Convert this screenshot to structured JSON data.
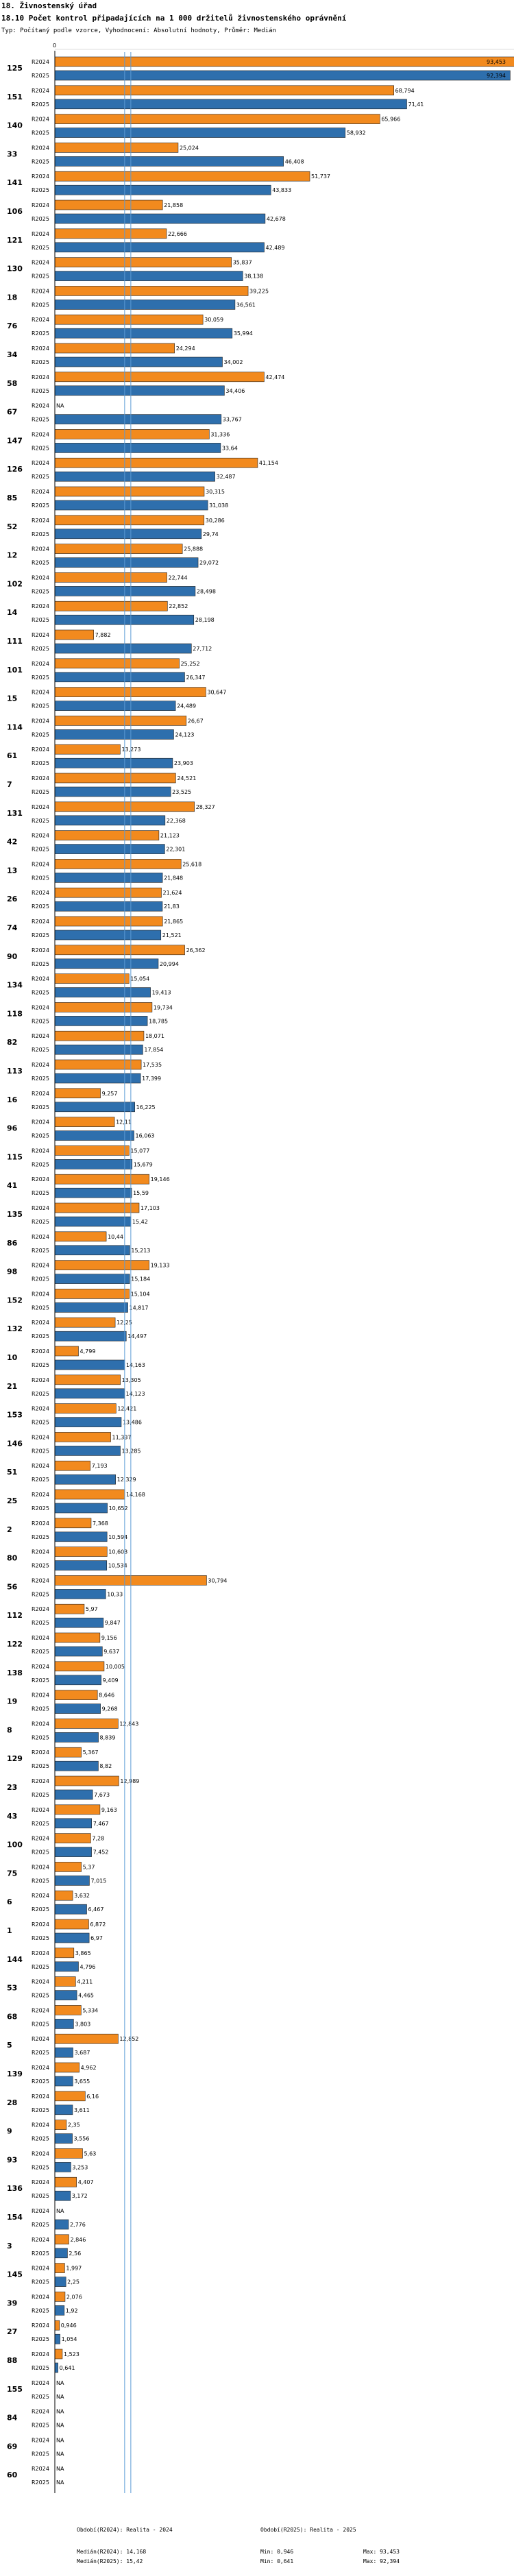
{
  "header": {
    "title": "18. Živnostenský úřad",
    "subtitle": "18.10 Počet kontrol připadajících na 1 000 držitelů živnostenského oprávnění",
    "note": "Typ: Počítaný podle vzorce, Vyhodnocení: Absolutní hodnoty, Průměr: Medián"
  },
  "footer": {
    "period_2024": "Období(R2024): Realita - 2024",
    "period_2025": "Období(R2025): Realita - 2025",
    "median_2024": "Medián(R2024): 14,168",
    "median_2025": "Medián(R2025): 15,42",
    "min_2024": "Min: 0,946",
    "min_2025": "Min: 0,641",
    "max_2024": "Max: 93,453",
    "max_2025": "Max: 92,394"
  },
  "colors": {
    "r2024": "#f28a1e",
    "r2025": "#2e6fad",
    "median": "#5b9bd5"
  },
  "chart_data": {
    "type": "bar",
    "orientation": "horizontal",
    "title": "18.10 Počet kontrol připadajících na 1 000 držitelů živnostenského oprávnění",
    "axis_tick": "0",
    "xlim": [
      0,
      93.453
    ],
    "median_2024": 14.168,
    "median_2025": 15.42,
    "series_names": [
      "R2024",
      "R2025"
    ],
    "categories": [
      {
        "id": "125",
        "v24": 93.453,
        "v25": 92.394,
        "t24": "93,453",
        "t25": "92,394"
      },
      {
        "id": "151",
        "v24": 68.794,
        "v25": 71.41,
        "t24": "68,794",
        "t25": "71,41"
      },
      {
        "id": "140",
        "v24": 65.966,
        "v25": 58.932,
        "t24": "65,966",
        "t25": "58,932"
      },
      {
        "id": "33",
        "v24": 25.024,
        "v25": 46.408,
        "t24": "25,024",
        "t25": "46,408"
      },
      {
        "id": "141",
        "v24": 51.737,
        "v25": 43.833,
        "t24": "51,737",
        "t25": "43,833"
      },
      {
        "id": "106",
        "v24": 21.858,
        "v25": 42.678,
        "t24": "21,858",
        "t25": "42,678"
      },
      {
        "id": "121",
        "v24": 22.666,
        "v25": 42.489,
        "t24": "22,666",
        "t25": "42,489"
      },
      {
        "id": "130",
        "v24": 35.837,
        "v25": 38.138,
        "t24": "35,837",
        "t25": "38,138"
      },
      {
        "id": "18",
        "v24": 39.225,
        "v25": 36.561,
        "t24": "39,225",
        "t25": "36,561"
      },
      {
        "id": "76",
        "v24": 30.059,
        "v25": 35.994,
        "t24": "30,059",
        "t25": "35,994"
      },
      {
        "id": "34",
        "v24": 24.294,
        "v25": 34.002,
        "t24": "24,294",
        "t25": "34,002"
      },
      {
        "id": "58",
        "v24": 42.474,
        "v25": 34.406,
        "t24": "42,474",
        "t25": "34,406"
      },
      {
        "id": "67",
        "v24": null,
        "v25": 33.767,
        "t24": "NA",
        "t25": "33,767"
      },
      {
        "id": "147",
        "v24": 31.336,
        "v25": 33.64,
        "t24": "31,336",
        "t25": "33,64"
      },
      {
        "id": "126",
        "v24": 41.154,
        "v25": 32.487,
        "t24": "41,154",
        "t25": "32,487"
      },
      {
        "id": "85",
        "v24": 30.315,
        "v25": 31.038,
        "t24": "30,315",
        "t25": "31,038"
      },
      {
        "id": "52",
        "v24": 30.286,
        "v25": 29.74,
        "t24": "30,286",
        "t25": "29,74"
      },
      {
        "id": "12",
        "v24": 25.888,
        "v25": 29.072,
        "t24": "25,888",
        "t25": "29,072"
      },
      {
        "id": "102",
        "v24": 22.744,
        "v25": 28.498,
        "t24": "22,744",
        "t25": "28,498"
      },
      {
        "id": "14",
        "v24": 22.852,
        "v25": 28.198,
        "t24": "22,852",
        "t25": "28,198"
      },
      {
        "id": "111",
        "v24": 7.882,
        "v25": 27.712,
        "t24": "7,882",
        "t25": "27,712"
      },
      {
        "id": "101",
        "v24": 25.252,
        "v25": 26.347,
        "t24": "25,252",
        "t25": "26,347"
      },
      {
        "id": "15",
        "v24": 30.647,
        "v25": 24.489,
        "t24": "30,647",
        "t25": "24,489"
      },
      {
        "id": "114",
        "v24": 26.67,
        "v25": 24.123,
        "t24": "26,67",
        "t25": "24,123"
      },
      {
        "id": "61",
        "v24": 13.273,
        "v25": 23.903,
        "t24": "13,273",
        "t25": "23,903"
      },
      {
        "id": "7",
        "v24": 24.521,
        "v25": 23.525,
        "t24": "24,521",
        "t25": "23,525"
      },
      {
        "id": "131",
        "v24": 28.327,
        "v25": 22.368,
        "t24": "28,327",
        "t25": "22,368"
      },
      {
        "id": "42",
        "v24": 21.123,
        "v25": 22.301,
        "t24": "21,123",
        "t25": "22,301"
      },
      {
        "id": "13",
        "v24": 25.618,
        "v25": 21.848,
        "t24": "25,618",
        "t25": "21,848"
      },
      {
        "id": "26",
        "v24": 21.624,
        "v25": 21.83,
        "t24": "21,624",
        "t25": "21,83"
      },
      {
        "id": "74",
        "v24": 21.865,
        "v25": 21.521,
        "t24": "21,865",
        "t25": "21,521"
      },
      {
        "id": "90",
        "v24": 26.362,
        "v25": 20.994,
        "t24": "26,362",
        "t25": "20,994"
      },
      {
        "id": "134",
        "v24": 15.054,
        "v25": 19.413,
        "t24": "15,054",
        "t25": "19,413"
      },
      {
        "id": "118",
        "v24": 19.734,
        "v25": 18.785,
        "t24": "19,734",
        "t25": "18,785"
      },
      {
        "id": "82",
        "v24": 18.071,
        "v25": 17.854,
        "t24": "18,071",
        "t25": "17,854"
      },
      {
        "id": "113",
        "v24": 17.535,
        "v25": 17.399,
        "t24": "17,535",
        "t25": "17,399"
      },
      {
        "id": "16",
        "v24": 9.257,
        "v25": 16.225,
        "t24": "9,257",
        "t25": "16,225"
      },
      {
        "id": "96",
        "v24": 12.11,
        "v25": 16.063,
        "t24": "12,11",
        "t25": "16,063"
      },
      {
        "id": "115",
        "v24": 15.077,
        "v25": 15.679,
        "t24": "15,077",
        "t25": "15,679"
      },
      {
        "id": "41",
        "v24": 19.146,
        "v25": 15.59,
        "t24": "19,146",
        "t25": "15,59"
      },
      {
        "id": "135",
        "v24": 17.103,
        "v25": 15.42,
        "t24": "17,103",
        "t25": "15,42"
      },
      {
        "id": "86",
        "v24": 10.44,
        "v25": 15.213,
        "t24": "10,44",
        "t25": "15,213"
      },
      {
        "id": "98",
        "v24": 19.133,
        "v25": 15.184,
        "t24": "19,133",
        "t25": "15,184"
      },
      {
        "id": "152",
        "v24": 15.104,
        "v25": 14.817,
        "t24": "15,104",
        "t25": "14,817"
      },
      {
        "id": "132",
        "v24": 12.25,
        "v25": 14.497,
        "t24": "12,25",
        "t25": "14,497"
      },
      {
        "id": "10",
        "v24": 4.799,
        "v25": 14.163,
        "t24": "4,799",
        "t25": "14,163"
      },
      {
        "id": "21",
        "v24": 13.305,
        "v25": 14.123,
        "t24": "13,305",
        "t25": "14,123"
      },
      {
        "id": "153",
        "v24": 12.421,
        "v25": 13.486,
        "t24": "12,421",
        "t25": "13,486"
      },
      {
        "id": "146",
        "v24": 11.337,
        "v25": 13.285,
        "t24": "11,337",
        "t25": "13,285"
      },
      {
        "id": "51",
        "v24": 7.193,
        "v25": 12.329,
        "t24": "7,193",
        "t25": "12,329"
      },
      {
        "id": "25",
        "v24": 14.168,
        "v25": 10.652,
        "t24": "14,168",
        "t25": "10,652"
      },
      {
        "id": "2",
        "v24": 7.368,
        "v25": 10.594,
        "t24": "7,368",
        "t25": "10,594"
      },
      {
        "id": "80",
        "v24": 10.603,
        "v25": 10.534,
        "t24": "10,603",
        "t25": "10,534"
      },
      {
        "id": "56",
        "v24": 30.794,
        "v25": 10.33,
        "t24": "30,794",
        "t25": "10,33"
      },
      {
        "id": "112",
        "v24": 5.97,
        "v25": 9.847,
        "t24": "5,97",
        "t25": "9,847"
      },
      {
        "id": "122",
        "v24": 9.156,
        "v25": 9.637,
        "t24": "9,156",
        "t25": "9,637"
      },
      {
        "id": "138",
        "v24": 10.005,
        "v25": 9.409,
        "t24": "10,005",
        "t25": "9,409"
      },
      {
        "id": "19",
        "v24": 8.646,
        "v25": 9.268,
        "t24": "8,646",
        "t25": "9,268"
      },
      {
        "id": "8",
        "v24": 12.843,
        "v25": 8.839,
        "t24": "12,843",
        "t25": "8,839"
      },
      {
        "id": "129",
        "v24": 5.367,
        "v25": 8.82,
        "t24": "5,367",
        "t25": "8,82"
      },
      {
        "id": "23",
        "v24": 12.989,
        "v25": 7.673,
        "t24": "12,989",
        "t25": "7,673"
      },
      {
        "id": "43",
        "v24": 9.163,
        "v25": 7.467,
        "t24": "9,163",
        "t25": "7,467"
      },
      {
        "id": "100",
        "v24": 7.28,
        "v25": 7.452,
        "t24": "7,28",
        "t25": "7,452"
      },
      {
        "id": "75",
        "v24": 5.37,
        "v25": 7.015,
        "t24": "5,37",
        "t25": "7,015"
      },
      {
        "id": "6",
        "v24": 3.632,
        "v25": 6.467,
        "t24": "3,632",
        "t25": "6,467"
      },
      {
        "id": "1",
        "v24": 6.872,
        "v25": 6.97,
        "t24": "6,872",
        "t25": "6,97"
      },
      {
        "id": "144",
        "v24": 3.865,
        "v25": 4.796,
        "t24": "3,865",
        "t25": "4,796"
      },
      {
        "id": "53",
        "v24": 4.211,
        "v25": 4.465,
        "t24": "4,211",
        "t25": "4,465"
      },
      {
        "id": "68",
        "v24": 5.334,
        "v25": 3.803,
        "t24": "5,334",
        "t25": "3,803"
      },
      {
        "id": "5",
        "v24": 12.852,
        "v25": 3.687,
        "t24": "12,852",
        "t25": "3,687"
      },
      {
        "id": "139",
        "v24": 4.962,
        "v25": 3.655,
        "t24": "4,962",
        "t25": "3,655"
      },
      {
        "id": "28",
        "v24": 6.16,
        "v25": 3.611,
        "t24": "6,16",
        "t25": "3,611"
      },
      {
        "id": "9",
        "v24": 2.35,
        "v25": 3.556,
        "t24": "2,35",
        "t25": "3,556"
      },
      {
        "id": "93",
        "v24": 5.63,
        "v25": 3.253,
        "t24": "5,63",
        "t25": "3,253"
      },
      {
        "id": "136",
        "v24": 4.407,
        "v25": 3.172,
        "t24": "4,407",
        "t25": "3,172"
      },
      {
        "id": "154",
        "v24": null,
        "v25": 2.776,
        "t24": "NA",
        "t25": "2,776"
      },
      {
        "id": "3",
        "v24": 2.846,
        "v25": 2.56,
        "t24": "2,846",
        "t25": "2,56"
      },
      {
        "id": "145",
        "v24": 1.997,
        "v25": 2.25,
        "t24": "1,997",
        "t25": "2,25"
      },
      {
        "id": "39",
        "v24": 2.076,
        "v25": 1.92,
        "t24": "2,076",
        "t25": "1,92"
      },
      {
        "id": "27",
        "v24": 0.946,
        "v25": 1.054,
        "t24": "0,946",
        "t25": "1,054"
      },
      {
        "id": "88",
        "v24": 1.523,
        "v25": 0.641,
        "t24": "1,523",
        "t25": "0,641"
      },
      {
        "id": "155",
        "v24": null,
        "v25": null,
        "t24": "NA",
        "t25": "NA"
      },
      {
        "id": "84",
        "v24": null,
        "v25": null,
        "t24": "NA",
        "t25": "NA"
      },
      {
        "id": "69",
        "v24": null,
        "v25": null,
        "t24": "NA",
        "t25": "NA"
      },
      {
        "id": "60",
        "v24": null,
        "v25": null,
        "t24": "NA",
        "t25": "NA"
      }
    ]
  }
}
